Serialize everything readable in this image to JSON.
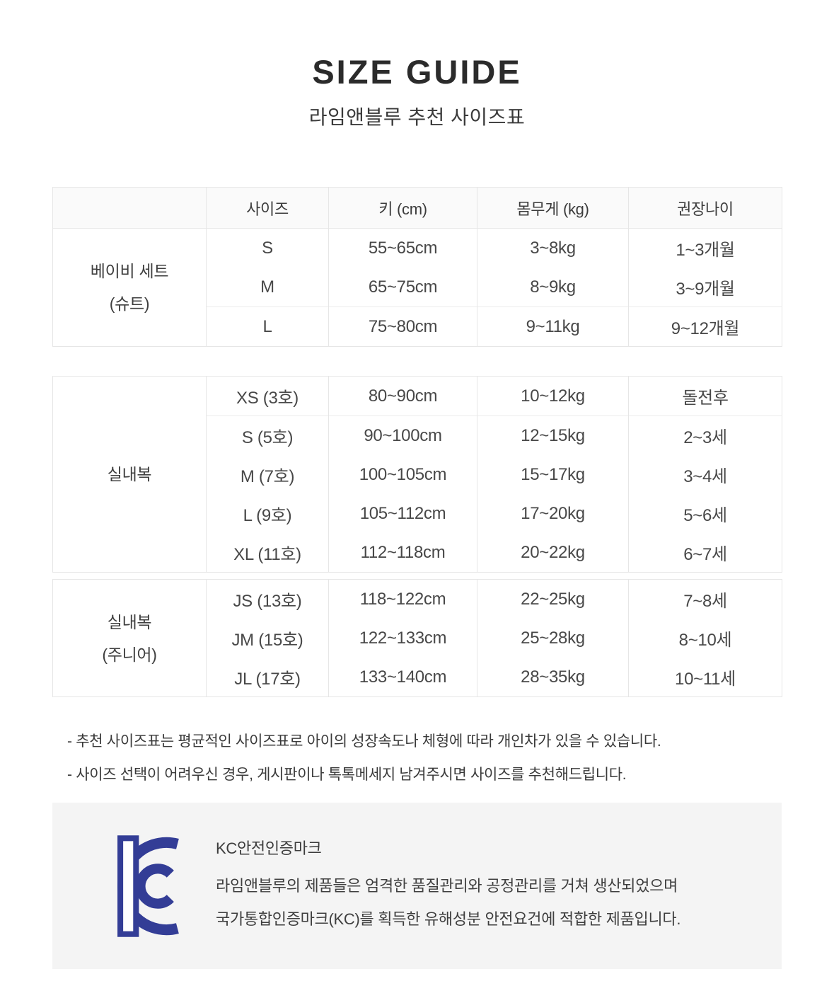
{
  "page": {
    "title": "SIZE GUIDE",
    "subtitle": "라임앤블루 추천 사이즈표"
  },
  "size_table": {
    "column_headers": [
      "사이즈",
      "키 (cm)",
      "몸무게 (kg)",
      "권장나이"
    ],
    "sections": [
      {
        "category_lines": [
          "베이비 세트",
          "(슈트)"
        ],
        "rows": [
          {
            "size": "S",
            "height": "55~65cm",
            "weight": "3~8kg",
            "age": "1~3개월"
          },
          {
            "size": "M",
            "height": "65~75cm",
            "weight": "8~9kg",
            "age": "3~9개월"
          },
          {
            "size": "L",
            "height": "75~80cm",
            "weight": "9~11kg",
            "age": "9~12개월",
            "separator_above": true
          }
        ]
      },
      {
        "category_lines": [
          "실내복"
        ],
        "rows": [
          {
            "size": "XS (3호)",
            "height": "80~90cm",
            "weight": "10~12kg",
            "age": "돌전후"
          },
          {
            "size": "S (5호)",
            "height": "90~100cm",
            "weight": "12~15kg",
            "age": "2~3세",
            "separator_above": true
          },
          {
            "size": "M (7호)",
            "height": "100~105cm",
            "weight": "15~17kg",
            "age": "3~4세"
          },
          {
            "size": "L (9호)",
            "height": "105~112cm",
            "weight": "17~20kg",
            "age": "5~6세"
          },
          {
            "size": "XL (11호)",
            "height": "112~118cm",
            "weight": "20~22kg",
            "age": "6~7세"
          }
        ]
      },
      {
        "category_lines": [
          "실내복",
          "(주니어)"
        ],
        "rows": [
          {
            "size": "JS (13호)",
            "height": "118~122cm",
            "weight": "22~25kg",
            "age": "7~8세"
          },
          {
            "size": "JM (15호)",
            "height": "122~133cm",
            "weight": "25~28kg",
            "age": "8~10세"
          },
          {
            "size": "JL (17호)",
            "height": "133~140cm",
            "weight": "28~35kg",
            "age": "10~11세"
          }
        ]
      }
    ]
  },
  "notes": [
    "- 추천 사이즈표는 평균적인 사이즈표로 아이의 성장속도나 체형에 따라 개인차가 있을 수 있습니다.",
    "- 사이즈 선택이 어려우신 경우, 게시판이나 톡톡메세지 남겨주시면 사이즈를 추천해드립니다."
  ],
  "kc": {
    "heading": "KC안전인증마크",
    "body_lines": [
      "라임앤블루의 제품들은 엄격한 품질관리와 공정관리를 거쳐 생산되었으며",
      "국가통합인증마크(KC)를 획득한 유해성분 안전요건에 적합한 제품입니다."
    ],
    "logo_label": "kc-certification-mark",
    "logo_color": "#333d96"
  }
}
